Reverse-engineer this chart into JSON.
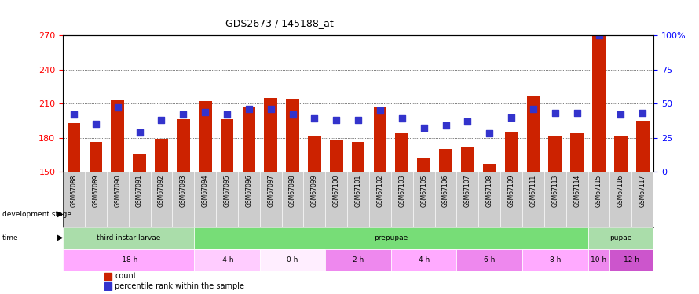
{
  "title": "GDS2673 / 145188_at",
  "samples": [
    "GSM67088",
    "GSM67089",
    "GSM67090",
    "GSM67091",
    "GSM67092",
    "GSM67093",
    "GSM67094",
    "GSM67095",
    "GSM67096",
    "GSM67097",
    "GSM67098",
    "GSM67099",
    "GSM67100",
    "GSM67101",
    "GSM67102",
    "GSM67103",
    "GSM67105",
    "GSM67106",
    "GSM67107",
    "GSM67108",
    "GSM67109",
    "GSM67111",
    "GSM67113",
    "GSM67114",
    "GSM67115",
    "GSM67116",
    "GSM67117"
  ],
  "counts": [
    193,
    176,
    213,
    165,
    179,
    196,
    212,
    196,
    207,
    215,
    214,
    182,
    178,
    176,
    207,
    184,
    162,
    170,
    172,
    157,
    185,
    216,
    182,
    184,
    270,
    181,
    195
  ],
  "percentiles": [
    42,
    35,
    47,
    29,
    38,
    42,
    44,
    42,
    46,
    46,
    42,
    39,
    38,
    38,
    45,
    39,
    32,
    34,
    37,
    28,
    40,
    46,
    43,
    43,
    100,
    42,
    43
  ],
  "ymin": 150,
  "ymax": 270,
  "yticks_left": [
    150,
    180,
    210,
    240,
    270
  ],
  "yticks_right": [
    0,
    25,
    50,
    75,
    100
  ],
  "bar_color": "#cc2200",
  "dot_color": "#3333cc",
  "dot_size": 30,
  "dev_stages": [
    {
      "label": "third instar larvae",
      "color": "#aaddaa",
      "start": 0,
      "end": 6
    },
    {
      "label": "prepupae",
      "color": "#77dd77",
      "start": 6,
      "end": 24
    },
    {
      "label": "pupae",
      "color": "#aaddaa",
      "start": 24,
      "end": 27
    }
  ],
  "time_slots": [
    {
      "label": "-18 h",
      "color": "#ffaaff",
      "start": 0,
      "end": 6
    },
    {
      "label": "-4 h",
      "color": "#ffccff",
      "start": 6,
      "end": 9
    },
    {
      "label": "0 h",
      "color": "#ffeeff",
      "start": 9,
      "end": 12
    },
    {
      "label": "2 h",
      "color": "#ee88ee",
      "start": 12,
      "end": 15
    },
    {
      "label": "4 h",
      "color": "#ffaaff",
      "start": 15,
      "end": 18
    },
    {
      "label": "6 h",
      "color": "#ee88ee",
      "start": 18,
      "end": 21
    },
    {
      "label": "8 h",
      "color": "#ffaaff",
      "start": 21,
      "end": 24
    },
    {
      "label": "10 h",
      "color": "#ee88ee",
      "start": 24,
      "end": 25
    },
    {
      "label": "12 h",
      "color": "#cc55cc",
      "start": 25,
      "end": 27
    }
  ],
  "bg_color": "#ffffff",
  "xticklabel_bg": "#cccccc"
}
